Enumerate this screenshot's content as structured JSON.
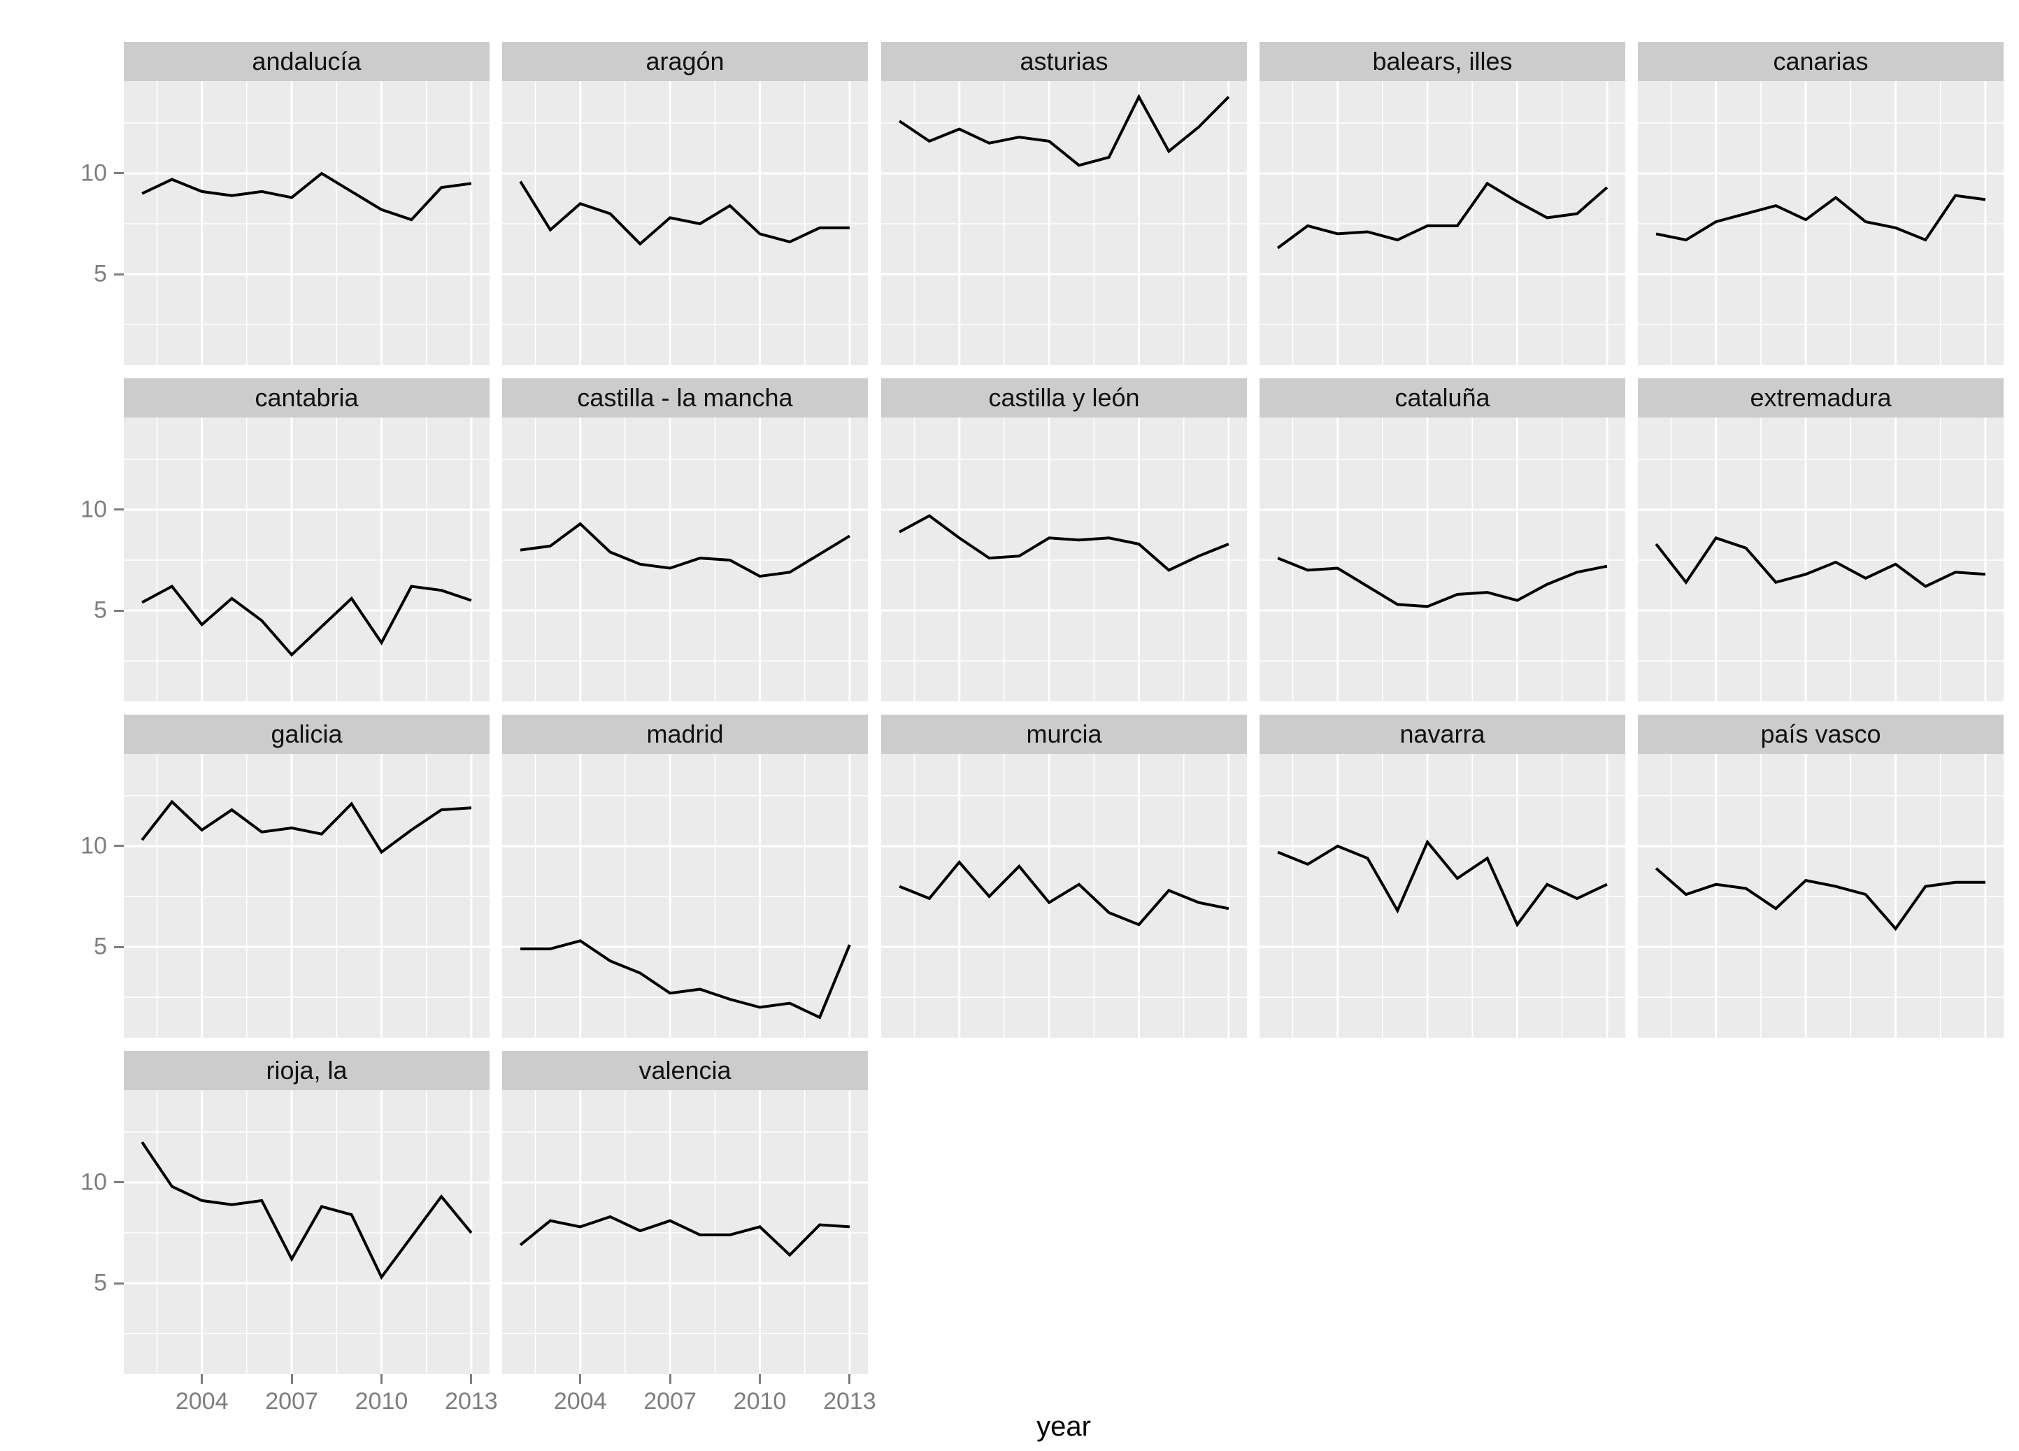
{
  "chart_data": {
    "type": "line",
    "title": "",
    "xlabel": "year",
    "x": [
      2002,
      2003,
      2004,
      2005,
      2006,
      2007,
      2008,
      2009,
      2010,
      2011,
      2012,
      2013
    ],
    "x_tick_labels": [
      "2004",
      "2007",
      "2010",
      "2013"
    ],
    "x_ticks": [
      2004,
      2007,
      2010,
      2013
    ],
    "x_minor_gridlines": [
      2002.5,
      2005.5,
      2008.5,
      2011.5
    ],
    "y_tick_labels": [
      "10",
      "5"
    ],
    "y_ticks": [
      10,
      5
    ],
    "y_minor_gridlines": [
      2.5,
      7.5,
      12.5
    ],
    "xlim": [
      2001.39,
      2013.61
    ],
    "ylim": [
      0.49,
      14.58
    ],
    "grid": true,
    "legend_position": "none",
    "facet_columns": 5,
    "series": [
      {
        "name": "andalucía",
        "values": [
          9.0,
          9.7,
          9.1,
          8.9,
          9.1,
          8.8,
          10.0,
          9.1,
          8.2,
          7.7,
          9.3,
          9.5
        ]
      },
      {
        "name": "aragón",
        "values": [
          9.6,
          7.2,
          8.5,
          8.0,
          6.5,
          7.8,
          7.5,
          8.4,
          7.0,
          6.6,
          7.3,
          7.3
        ]
      },
      {
        "name": "asturias",
        "values": [
          12.6,
          11.6,
          12.2,
          11.5,
          11.8,
          11.6,
          10.4,
          10.8,
          13.8,
          11.1,
          12.3,
          13.8
        ]
      },
      {
        "name": "balears, illes",
        "values": [
          6.3,
          7.4,
          7.0,
          7.1,
          6.7,
          7.4,
          7.4,
          9.5,
          8.6,
          7.8,
          8.0,
          9.3
        ]
      },
      {
        "name": "canarias",
        "values": [
          7.0,
          6.7,
          7.6,
          8.0,
          8.4,
          7.7,
          8.8,
          7.6,
          7.3,
          6.7,
          8.9,
          8.7
        ]
      },
      {
        "name": "cantabria",
        "values": [
          5.4,
          6.2,
          4.3,
          5.6,
          4.5,
          2.8,
          4.2,
          5.6,
          3.4,
          6.2,
          6.0,
          5.5
        ]
      },
      {
        "name": "castilla - la mancha",
        "values": [
          8.0,
          8.2,
          9.3,
          7.9,
          7.3,
          7.1,
          7.6,
          7.5,
          6.7,
          6.9,
          7.8,
          8.7
        ]
      },
      {
        "name": "castilla y león",
        "values": [
          8.9,
          9.7,
          8.6,
          7.6,
          7.7,
          8.6,
          8.5,
          8.6,
          8.3,
          7.0,
          7.7,
          8.3
        ]
      },
      {
        "name": "cataluña",
        "values": [
          7.6,
          7.0,
          7.1,
          6.2,
          5.3,
          5.2,
          5.8,
          5.9,
          5.5,
          6.3,
          6.9,
          7.2
        ]
      },
      {
        "name": "extremadura",
        "values": [
          8.3,
          6.4,
          8.6,
          8.1,
          6.4,
          6.8,
          7.4,
          6.6,
          7.3,
          6.2,
          6.9,
          6.8
        ]
      },
      {
        "name": "galicia",
        "values": [
          10.3,
          12.2,
          10.8,
          11.8,
          10.7,
          10.9,
          10.6,
          12.1,
          9.7,
          10.8,
          11.8,
          11.9
        ]
      },
      {
        "name": "madrid",
        "values": [
          4.9,
          4.9,
          5.3,
          4.3,
          3.7,
          2.7,
          2.9,
          2.4,
          2.0,
          2.2,
          1.5,
          5.1
        ]
      },
      {
        "name": "murcia",
        "values": [
          8.0,
          7.4,
          9.2,
          7.5,
          9.0,
          7.2,
          8.1,
          6.7,
          6.1,
          7.8,
          7.2,
          6.9
        ]
      },
      {
        "name": "navarra",
        "values": [
          9.7,
          9.1,
          10.0,
          9.4,
          6.8,
          10.2,
          8.4,
          9.4,
          6.1,
          8.1,
          7.4,
          8.1
        ]
      },
      {
        "name": "país vasco",
        "values": [
          8.9,
          7.6,
          8.1,
          7.9,
          6.9,
          8.3,
          8.0,
          7.6,
          5.9,
          8.0,
          8.2,
          8.2
        ]
      },
      {
        "name": "rioja, la",
        "values": [
          12.0,
          9.8,
          9.1,
          8.9,
          9.1,
          6.2,
          8.8,
          8.4,
          5.3,
          7.3,
          9.3,
          7.5
        ]
      },
      {
        "name": "valencia",
        "values": [
          6.9,
          8.1,
          7.8,
          8.3,
          7.6,
          8.1,
          7.4,
          7.4,
          7.8,
          6.4,
          7.9,
          7.8
        ]
      }
    ],
    "colors": {
      "line": "#000000",
      "panel_background": "#ebebeb",
      "strip_background": "#cccccc",
      "strip_text": "#111111",
      "gridline": "#ffffff",
      "axis_text": "#7e7e7e",
      "page_background": "#ffffff"
    }
  }
}
